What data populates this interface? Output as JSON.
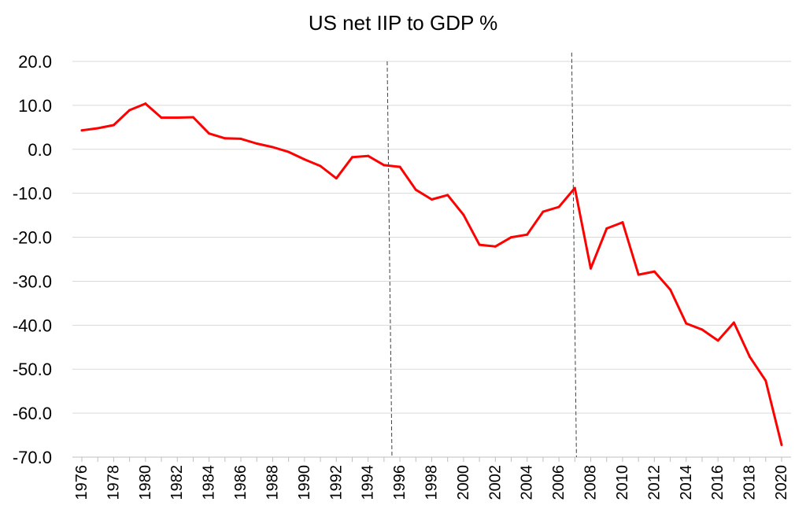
{
  "chart_data": {
    "type": "line",
    "title": "US net IIP to GDP %",
    "xlabel": "",
    "ylabel": "",
    "ylim": [
      -70,
      20
    ],
    "yticks": [
      20,
      10,
      0,
      -10,
      -20,
      -30,
      -40,
      -50,
      -60,
      -70
    ],
    "ytick_labels": [
      "20.0",
      "10.0",
      "0.0",
      "-10.0",
      "-20.0",
      "-30.0",
      "-40.0",
      "-50.0",
      "-60.0",
      "-70.0"
    ],
    "xtick_labels": [
      "1976",
      "1978",
      "1980",
      "1982",
      "1984",
      "1986",
      "1988",
      "1990",
      "1992",
      "1994",
      "1996",
      "1998",
      "2000",
      "2002",
      "2004",
      "2006",
      "2008",
      "2010",
      "2012",
      "2014",
      "2016",
      "2018",
      "2020"
    ],
    "grid": true,
    "legend": "none",
    "line_color": "#ff0000",
    "x": [
      1976,
      1977,
      1978,
      1979,
      1980,
      1981,
      1982,
      1983,
      1984,
      1985,
      1986,
      1987,
      1988,
      1989,
      1990,
      1991,
      1992,
      1993,
      1994,
      1995,
      1996,
      1997,
      1998,
      1999,
      2000,
      2001,
      2002,
      2003,
      2004,
      2005,
      2006,
      2007,
      2008,
      2009,
      2010,
      2011,
      2012,
      2013,
      2014,
      2015,
      2016,
      2017,
      2018,
      2019,
      2020
    ],
    "series": [
      {
        "values": [
          4.3,
          4.8,
          5.5,
          8.9,
          10.4,
          7.2,
          7.2,
          7.3,
          3.6,
          2.5,
          2.4,
          1.3,
          0.5,
          -0.6,
          -2.3,
          -3.8,
          -6.6,
          -1.8,
          -1.5,
          -3.6,
          -4.0,
          -9.2,
          -11.4,
          -10.4,
          -14.9,
          -21.7,
          -22.1,
          -20.0,
          -19.4,
          -14.2,
          -13.1,
          -8.8,
          -27.1,
          -18.0,
          -16.6,
          -28.5,
          -27.8,
          -31.9,
          -39.6,
          -41.0,
          -43.5,
          -39.4,
          -47.2,
          -52.6,
          -67.2
        ]
      }
    ],
    "reference_lines": [
      {
        "x_top": 1995.2,
        "y_top": 20,
        "x_bottom": 1995.5,
        "y_bottom": -70
      },
      {
        "x_top": 2006.8,
        "y_top": 22,
        "x_bottom": 2007.1,
        "y_bottom": -70
      }
    ]
  }
}
